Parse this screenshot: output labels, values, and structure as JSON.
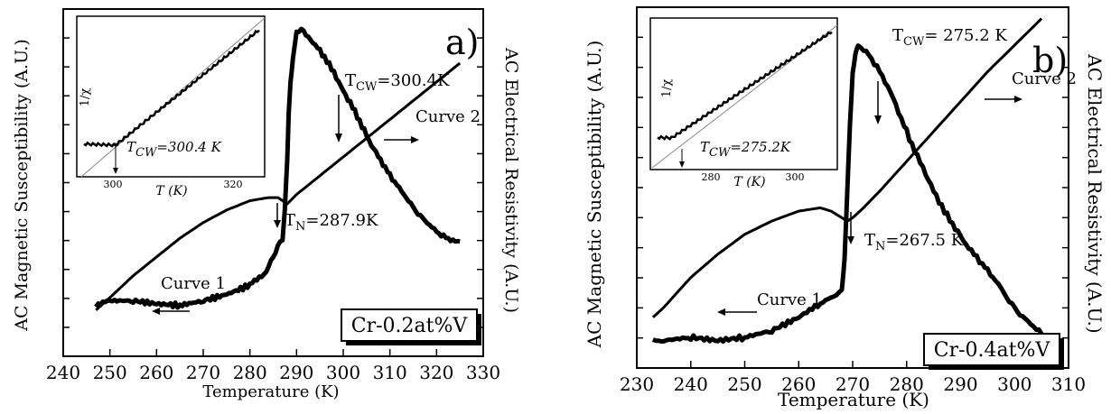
{
  "chart_data": [
    {
      "panel": "a)",
      "type": "line",
      "xlabel": "Temperature (K)",
      "ylabel_left": "AC Magnetic Susceptibility  (A.U.)",
      "ylabel_right": "AC Electrical Resistivity  (A.U.)",
      "xlim": [
        240,
        330
      ],
      "xticks": [
        "240",
        "250",
        "260",
        "270",
        "280",
        "290",
        "300",
        "310",
        "320",
        "330"
      ],
      "sample_label": "Cr-0.2at%V",
      "series": [
        {
          "name": "Curve 1",
          "x": [
            247,
            250,
            255,
            260,
            265,
            270,
            275,
            280,
            283,
            285,
            286,
            287,
            287.5,
            288,
            288.3,
            288.7,
            289.2,
            290,
            291,
            292,
            294,
            296,
            298,
            300,
            302,
            304,
            306,
            308,
            310,
            312,
            314,
            316,
            318,
            320,
            322,
            324,
            325
          ],
          "y": [
            0.08,
            0.1,
            0.1,
            0.09,
            0.085,
            0.1,
            0.12,
            0.15,
            0.18,
            0.24,
            0.28,
            0.3,
            0.4,
            0.55,
            0.7,
            0.8,
            0.88,
            0.96,
            0.97,
            0.95,
            0.92,
            0.88,
            0.83,
            0.77,
            0.72,
            0.66,
            0.6,
            0.55,
            0.5,
            0.46,
            0.42,
            0.38,
            0.35,
            0.32,
            0.3,
            0.29,
            0.29
          ]
        },
        {
          "name": "Curve 2",
          "x": [
            247,
            250,
            255,
            260,
            265,
            270,
            275,
            280,
            284,
            286,
            287,
            288,
            290,
            295,
            300,
            305,
            310,
            315,
            320,
            325
          ],
          "y": [
            0.07,
            0.11,
            0.18,
            0.24,
            0.3,
            0.35,
            0.39,
            0.42,
            0.43,
            0.43,
            0.42,
            0.41,
            0.44,
            0.5,
            0.56,
            0.62,
            0.68,
            0.74,
            0.8,
            0.86
          ]
        }
      ],
      "annotations": {
        "tcw": "T<sub>CW</sub>=300.4K",
        "tn": "T<sub>N</sub>=287.9K",
        "curve1": "Curve 1",
        "curve2": "Curve 2"
      },
      "inset": {
        "ylabel": "1/χ",
        "xlabel": "T (K)",
        "xticks": [
          "300",
          "320"
        ],
        "annotation": "T<sub>CW</sub>=300.4 K"
      }
    },
    {
      "panel": "b)",
      "type": "line",
      "xlabel": "Temperature (K)",
      "ylabel_left": "AC Magnetic Susceptibility (A.U.)",
      "ylabel_right": "AC Electrical Resistivity (A.U.)",
      "xlim": [
        230,
        310
      ],
      "xticks": [
        "230",
        "240",
        "250",
        "260",
        "270",
        "280",
        "290",
        "300",
        "310"
      ],
      "sample_label": "Cr-0.4at%V",
      "series": [
        {
          "name": "Curve 1",
          "x": [
            233,
            235,
            240,
            245,
            250,
            255,
            260,
            263,
            265,
            267,
            268,
            268.5,
            269,
            269.5,
            270,
            270.5,
            271,
            273,
            275,
            277,
            279,
            281,
            283,
            285,
            287,
            289,
            291,
            293,
            295,
            297,
            299,
            301,
            303,
            305
          ],
          "y": [
            0.05,
            0.05,
            0.06,
            0.05,
            0.06,
            0.08,
            0.12,
            0.15,
            0.17,
            0.19,
            0.2,
            0.3,
            0.5,
            0.7,
            0.86,
            0.92,
            0.94,
            0.91,
            0.86,
            0.8,
            0.72,
            0.64,
            0.57,
            0.5,
            0.44,
            0.39,
            0.34,
            0.3,
            0.26,
            0.22,
            0.17,
            0.13,
            0.1,
            0.07
          ]
        },
        {
          "name": "Curve 2",
          "x": [
            233,
            235,
            240,
            245,
            250,
            255,
            260,
            264,
            266,
            268,
            269,
            270,
            272,
            275,
            280,
            285,
            290,
            295,
            300,
            305
          ],
          "y": [
            0.12,
            0.15,
            0.24,
            0.31,
            0.37,
            0.41,
            0.44,
            0.45,
            0.44,
            0.42,
            0.41,
            0.42,
            0.45,
            0.5,
            0.59,
            0.68,
            0.77,
            0.86,
            0.94,
            1.02
          ]
        }
      ],
      "annotations": {
        "tcw": "T<sub>CW</sub>= 275.2 K",
        "tn": "T<sub>N</sub>=267.5 K",
        "curve1": "Curve 1",
        "curve2": "Curve 2"
      },
      "inset": {
        "ylabel": "1/χ",
        "xlabel": "T (K)",
        "xticks": [
          "280",
          "300"
        ],
        "annotation": "T<sub>CW</sub>=275.2K"
      }
    }
  ]
}
